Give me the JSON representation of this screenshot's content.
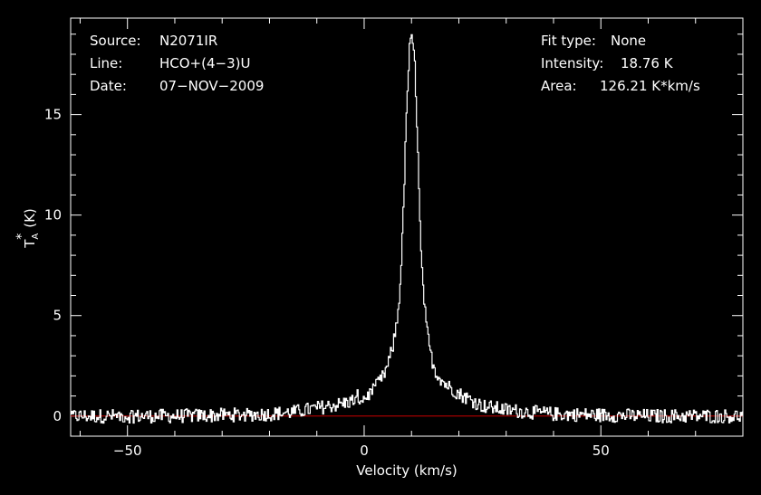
{
  "chart_data": {
    "type": "line",
    "xlabel": "Velocity (km/s)",
    "ylabel": "T",
    "ylabel_sub": "A",
    "ylabel_sup": "*",
    "ylabel_unit": "(K)",
    "xlim": [
      -62,
      80
    ],
    "ylim": [
      -1.0,
      19.8
    ],
    "xticks": [
      -50,
      0,
      50
    ],
    "xtick_labels": [
      "−50",
      "0",
      "50"
    ],
    "yticks": [
      0,
      5,
      10,
      15
    ],
    "ytick_labels": [
      "0",
      "5",
      "10",
      "15"
    ],
    "baseline": 0,
    "colors": {
      "background": "#000000",
      "spectrum": "#ffffff",
      "baseline": "#cc0000",
      "axes": "#ffffff"
    },
    "series": [
      {
        "x": [
          -62,
          -40,
          -20,
          -15,
          -10,
          -5,
          -2,
          0,
          2,
          4,
          5,
          6,
          7,
          7.5,
          8,
          8.5,
          9,
          9.5,
          10,
          10.5,
          11,
          11.5,
          12,
          13,
          14,
          15,
          17,
          20,
          25,
          30,
          40,
          60,
          80
        ],
        "values": [
          0.0,
          0.0,
          0.1,
          0.2,
          0.4,
          0.6,
          0.8,
          0.9,
          1.3,
          2.0,
          2.6,
          3.5,
          5.0,
          6.5,
          9.0,
          12.5,
          16.0,
          18.3,
          18.76,
          18.0,
          15.0,
          11.0,
          7.5,
          4.5,
          3.0,
          2.2,
          1.6,
          1.1,
          0.5,
          0.3,
          0.1,
          0.0,
          0.0
        ]
      }
    ]
  },
  "info": {
    "source_label": "Source:",
    "source_value": "N2071IR",
    "line_label": "Line:",
    "line_value": "HCO+(4−3)U",
    "date_label": "Date:",
    "date_value": "07−NOV−2009",
    "fit_label": "Fit type:",
    "fit_value": "None",
    "intensity_label": "Intensity:",
    "intensity_value": "18.76 K",
    "area_label": "Area:",
    "area_value": "126.21 K*km/s"
  }
}
